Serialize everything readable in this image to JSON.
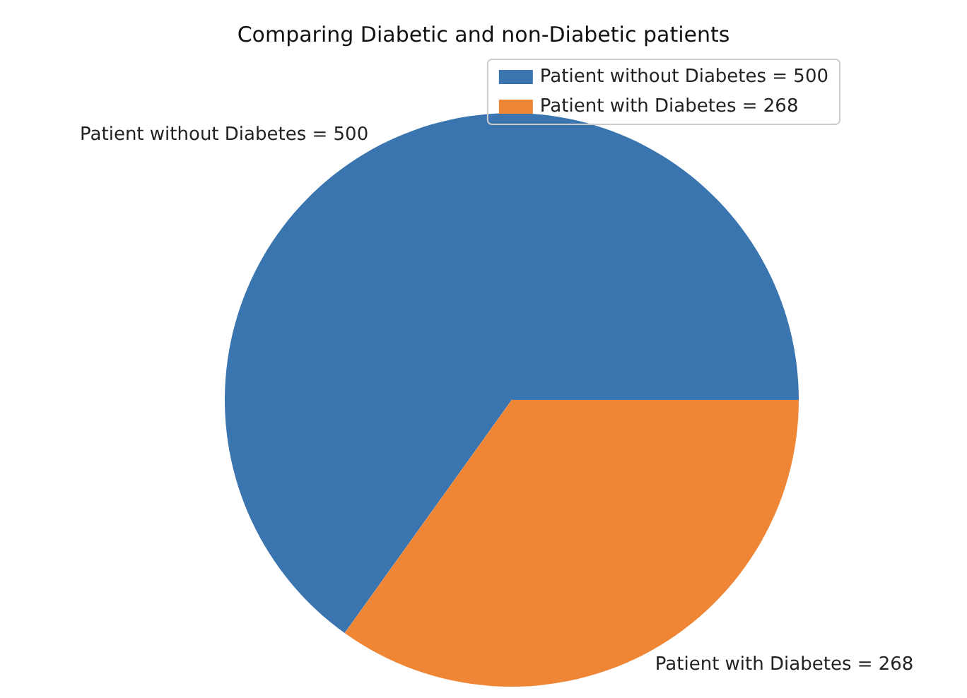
{
  "chart_data": {
    "type": "pie",
    "title": "Comparing Diabetic and non-Diabetic patients",
    "categories": [
      "Patient without Diabetes = 500",
      "Patient with Diabetes = 268"
    ],
    "values": [
      500,
      268
    ],
    "colors": [
      "#3a75af",
      "#ef8636"
    ],
    "legend": "top right"
  }
}
